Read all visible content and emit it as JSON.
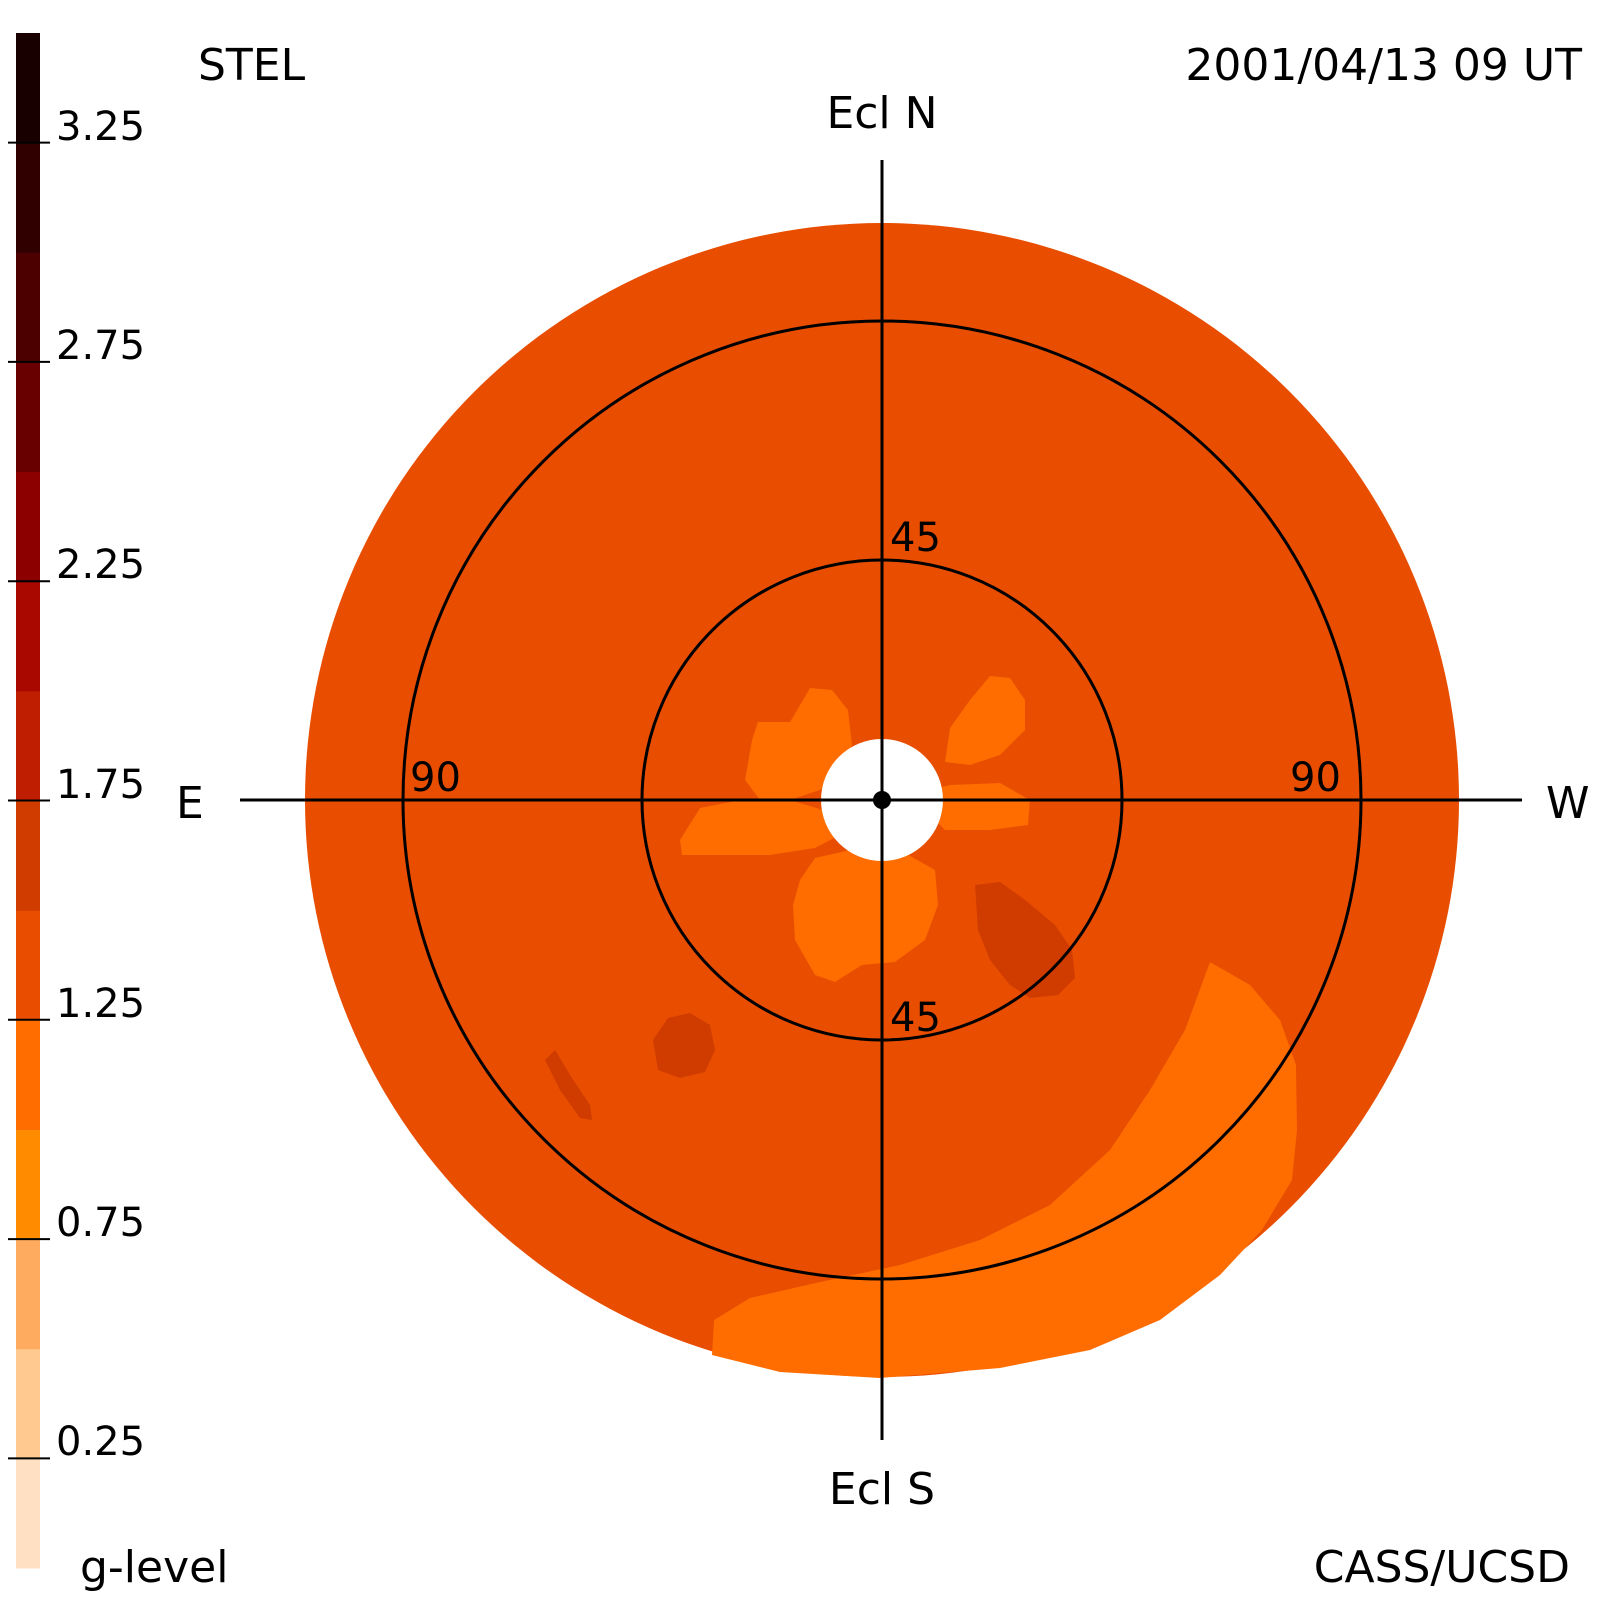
{
  "header": {
    "instrument": "STEL",
    "datetime": "2001/04/13 09 UT",
    "credit": "CASS/UCSD"
  },
  "directions": {
    "north": "Ecl N",
    "south": "Ecl S",
    "east": "E",
    "west": "W"
  },
  "rings": {
    "inner_label_top": "45",
    "inner_label_bottom": "45",
    "outer_label_left": "90",
    "outer_label_right": "90"
  },
  "colorbar": {
    "label": "g-level",
    "tick_labels": [
      "0.25",
      "0.75",
      "1.25",
      "1.75",
      "2.25",
      "2.75",
      "3.25"
    ],
    "tick_values": [
      0.25,
      0.75,
      1.25,
      1.75,
      2.25,
      2.75,
      3.25
    ],
    "range": [
      0.0,
      3.5
    ],
    "colors": [
      "#ffe0c3",
      "#ffc98f",
      "#ffab5f",
      "#ff8c00",
      "#ff6c00",
      "#e84d00",
      "#d03c00",
      "#c01e00",
      "#a80800",
      "#8c0000",
      "#680000",
      "#4c0000",
      "#300000",
      "#180000"
    ]
  },
  "chart_data": {
    "type": "heatmap",
    "projection": "fisheye sky map, ecliptic coordinates",
    "elongation_rings_deg": [
      45,
      90
    ],
    "background_level": 1.1,
    "features": [
      {
        "description": "enhanced band, lower-right to bottom",
        "level": 0.9
      },
      {
        "description": "enhancement lobes around sun",
        "level": 0.9
      },
      {
        "description": "dense patch right of south axis",
        "level": 1.35
      },
      {
        "description": "dense patch lower-left",
        "level": 1.35
      }
    ]
  }
}
